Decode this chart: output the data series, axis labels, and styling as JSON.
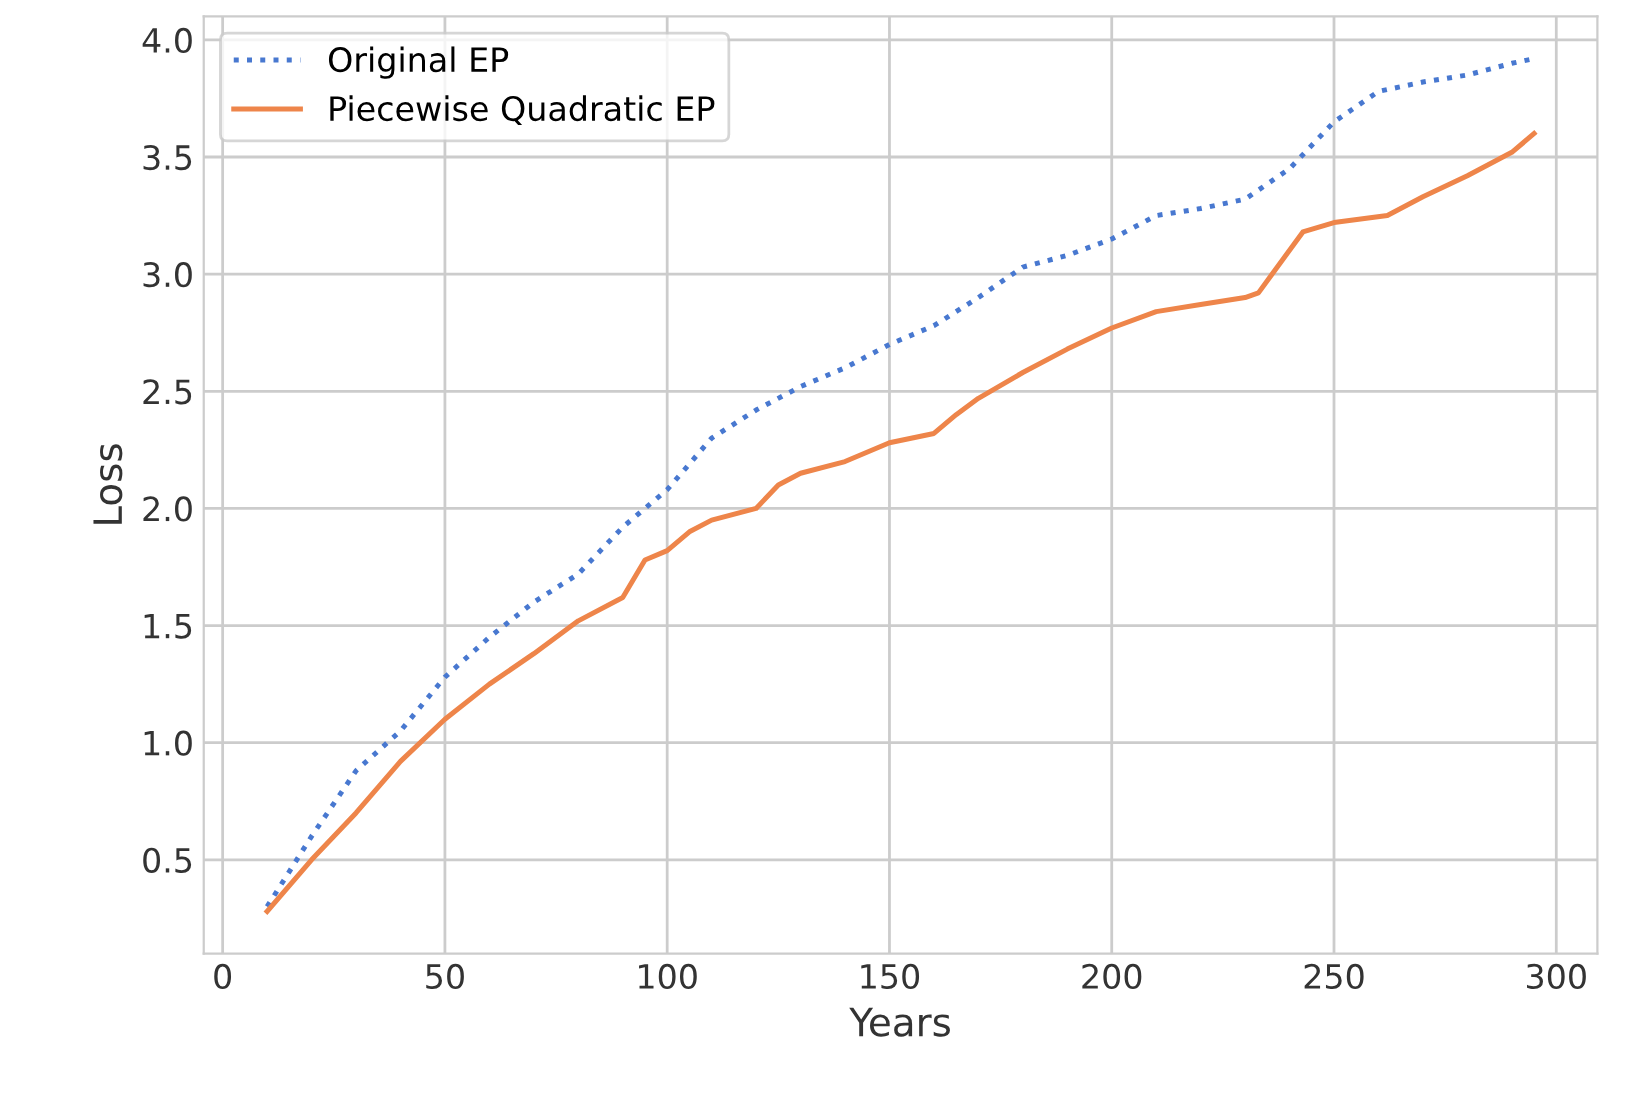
{
  "chart_data": {
    "type": "line",
    "xlabel": "Years",
    "ylabel": "Loss",
    "xlim": [
      -4.25,
      309.25
    ],
    "ylim": [
      0.1,
      4.1
    ],
    "xticks": [
      0,
      50,
      100,
      150,
      200,
      250,
      300
    ],
    "yticks": [
      0.5,
      {
        "value": 1,
        "label": "1.0"
      },
      1.5,
      {
        "value": 2,
        "label": "2.0"
      },
      2.5,
      {
        "value": 3,
        "label": "3.0"
      },
      3.5,
      {
        "value": 4,
        "label": "4.0"
      }
    ],
    "grid": true,
    "legend": "top left",
    "series": [
      {
        "name": "Original EP",
        "color": "#4878d0",
        "line_style": "dotted",
        "x": [
          10,
          20,
          30,
          40,
          50,
          60,
          70,
          80,
          90,
          100,
          110,
          120,
          130,
          140,
          150,
          160,
          170,
          180,
          190,
          200,
          210,
          220,
          230,
          240,
          250,
          260,
          270,
          280,
          290,
          295
        ],
        "values": [
          0.3,
          0.6,
          0.88,
          1.05,
          1.28,
          1.45,
          1.6,
          1.72,
          1.92,
          2.08,
          2.3,
          2.42,
          2.52,
          2.6,
          2.7,
          2.78,
          2.9,
          3.03,
          3.08,
          3.15,
          3.25,
          3.28,
          3.32,
          3.45,
          3.65,
          3.78,
          3.82,
          3.85,
          3.9,
          3.92
        ]
      },
      {
        "name": "Piecewise Quadratic EP",
        "color": "#ee854a",
        "line_style": "solid",
        "x": [
          10,
          20,
          30,
          40,
          50,
          60,
          70,
          80,
          90,
          95,
          100,
          105,
          110,
          120,
          125,
          130,
          140,
          150,
          160,
          165,
          170,
          180,
          190,
          200,
          210,
          220,
          230,
          233,
          243,
          250,
          262,
          270,
          280,
          290,
          295
        ],
        "values": [
          0.28,
          0.5,
          0.7,
          0.92,
          1.1,
          1.25,
          1.38,
          1.52,
          1.62,
          1.78,
          1.82,
          1.9,
          1.95,
          2.0,
          2.1,
          2.15,
          2.2,
          2.28,
          2.32,
          2.4,
          2.47,
          2.58,
          2.68,
          2.77,
          2.84,
          2.87,
          2.9,
          2.92,
          3.18,
          3.22,
          3.25,
          3.33,
          3.42,
          3.52,
          3.6
        ]
      }
    ]
  }
}
